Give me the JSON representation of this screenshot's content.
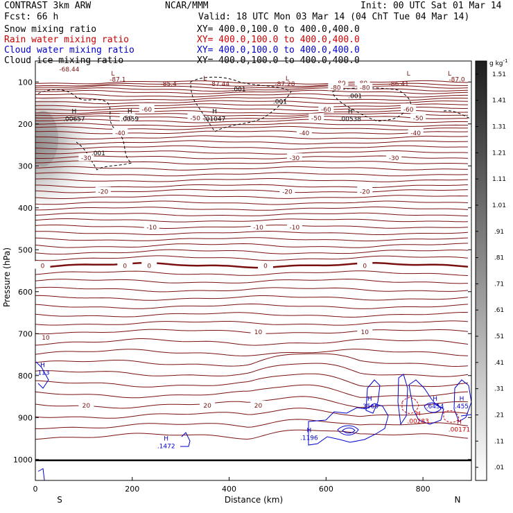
{
  "header": {
    "title_left": "CONTRAST  3km ARW",
    "title_center": "NCAR/MMM",
    "init": "Init: 00 UTC Sat 01 Mar 14",
    "fcst": "Fcst:   66 h",
    "valid": "Valid: 18 UTC Mon 03 Mar 14 (04 ChT Tue 04 Mar 14)",
    "fields": [
      {
        "name": "Snow mixing ratio",
        "xy": "XY= 400.0,100.0 to 400.0,400.0",
        "color": "#000000"
      },
      {
        "name": "Rain water mixing ratio",
        "xy": "XY= 400.0,100.0 to 400.0,400.0",
        "color": "#cc0000"
      },
      {
        "name": "Cloud water mixing ratio",
        "xy": "XY= 400.0,100.0 to 400.0,400.0",
        "color": "#0000cc"
      },
      {
        "name": "Cloud ice mixing ratio",
        "xy": "XY= 400.0,100.0 to 400.0,400.0",
        "color": "#000000"
      }
    ]
  },
  "chart_data": {
    "type": "contour-cross-section",
    "xlabel": "Distance (km)",
    "ylabel": "Pressure (hPa)",
    "xlim": [
      0,
      900
    ],
    "ylim": [
      1050,
      50
    ],
    "x_ticks": [
      0,
      200,
      400,
      600,
      800
    ],
    "y_ticks": [
      100,
      200,
      300,
      400,
      500,
      600,
      700,
      800,
      900,
      1000
    ],
    "end_labels": {
      "left": "S",
      "right": "N"
    },
    "colorbar": {
      "units": "g kg",
      "units_exp": "-1",
      "levels": [
        ".01",
        ".11",
        ".21",
        ".31",
        ".41",
        ".51",
        ".61",
        ".71",
        ".81",
        ".91",
        "1.01",
        "1.11",
        "1.21",
        "1.31",
        "1.41",
        "1.51"
      ]
    },
    "temperature_contours": [
      {
        "label": "-80",
        "p": 101,
        "labels": [
          {
            "x": 630,
            "text": "-80"
          },
          {
            "x": 675,
            "text": "-80"
          },
          {
            "x": 630,
            "text": "-80"
          }
        ]
      },
      {
        "label": "-80",
        "p": 112,
        "labels": [
          {
            "x": 620,
            "text": "-80"
          },
          {
            "x": 680,
            "text": "-80"
          }
        ]
      },
      {
        "label": "-60",
        "p": 164,
        "labels": [
          {
            "x": 230,
            "text": "-60"
          },
          {
            "x": 600,
            "text": "-60"
          },
          {
            "x": 770,
            "text": "-60"
          }
        ]
      },
      {
        "label": "-50",
        "p": 185,
        "labels": [
          {
            "x": 190,
            "text": "-50"
          },
          {
            "x": 330,
            "text": "-50"
          },
          {
            "x": 580,
            "text": "-50"
          },
          {
            "x": 790,
            "text": "-50"
          }
        ]
      },
      {
        "label": "-40",
        "p": 220,
        "labels": [
          {
            "x": 175,
            "text": "-40"
          },
          {
            "x": 555,
            "text": "-40"
          },
          {
            "x": 785,
            "text": "-40"
          }
        ]
      },
      {
        "label": "-30",
        "p": 280,
        "labels": [
          {
            "x": 105,
            "text": "-30"
          },
          {
            "x": 535,
            "text": "-30"
          },
          {
            "x": 740,
            "text": "-30"
          }
        ]
      },
      {
        "label": "-20",
        "p": 360,
        "labels": [
          {
            "x": 140,
            "text": "-20"
          },
          {
            "x": 520,
            "text": "-20"
          },
          {
            "x": 680,
            "text": "-20"
          }
        ]
      },
      {
        "label": "-10",
        "p": 445,
        "labels": [
          {
            "x": 240,
            "text": "-10"
          },
          {
            "x": 460,
            "text": "-10"
          },
          {
            "x": 535,
            "text": "-10"
          }
        ]
      },
      {
        "label": "0",
        "p": 537,
        "bold": true,
        "labels": [
          {
            "x": 15,
            "text": "0"
          },
          {
            "x": 185,
            "text": "0"
          },
          {
            "x": 235,
            "text": "0"
          },
          {
            "x": 475,
            "text": "0"
          },
          {
            "x": 680,
            "text": "0"
          }
        ]
      },
      {
        "label": "10",
        "p": 695,
        "labels": [
          {
            "x": 460,
            "text": "10"
          },
          {
            "x": 680,
            "text": "10"
          }
        ]
      },
      {
        "label": "20",
        "p": 870,
        "labels": [
          {
            "x": 105,
            "text": "20"
          },
          {
            "x": 355,
            "text": "20"
          },
          {
            "x": 460,
            "text": "20"
          }
        ]
      }
    ],
    "top_labels": [
      {
        "x": 70,
        "p": 68,
        "text": "-68.44"
      },
      {
        "x": 170,
        "p": 92,
        "text": "-87.1"
      },
      {
        "x": 275,
        "p": 103,
        "text": "-85.4"
      },
      {
        "x": 380,
        "p": 103,
        "text": "-87.44"
      },
      {
        "x": 515,
        "p": 103,
        "text": "-87.28"
      },
      {
        "x": 750,
        "p": 103,
        "text": "-86.41"
      },
      {
        "x": 870,
        "p": 92,
        "text": "-87.0"
      }
    ],
    "extrema": [
      {
        "kind": "H",
        "x": 80,
        "p": 185,
        "value": ".00657",
        "color": "#000000"
      },
      {
        "kind": "H",
        "x": 195,
        "p": 185,
        "value": ".0059",
        "color": "#000000"
      },
      {
        "kind": "H",
        "x": 370,
        "p": 185,
        "value": ".01047",
        "color": "#000000"
      },
      {
        "kind": "H",
        "x": 650,
        "p": 185,
        "value": ".00538",
        "color": "#000000"
      },
      {
        "kind": "H",
        "x": 270,
        "p": 965,
        "value": ".1472",
        "color": "#0000cc"
      },
      {
        "kind": "H",
        "x": 565,
        "p": 945,
        "value": ".1196",
        "color": "#0000cc"
      },
      {
        "kind": "H",
        "x": 690,
        "p": 870,
        "value": ".3569",
        "color": "#0000cc"
      },
      {
        "kind": "H",
        "x": 825,
        "p": 870,
        "value": ".6454",
        "color": "#0000cc"
      },
      {
        "kind": "H",
        "x": 880,
        "p": 870,
        "value": ".455",
        "color": "#0000cc"
      },
      {
        "kind": "H",
        "x": 15,
        "p": 790,
        "value": ".113",
        "color": "#0000cc"
      },
      {
        "kind": "H",
        "x": 790,
        "p": 905,
        "value": ".00283",
        "color": "#cc0000"
      },
      {
        "kind": "H",
        "x": 875,
        "p": 925,
        "value": ".00171",
        "color": "#cc0000"
      }
    ],
    "ice_labels": [
      {
        "x": 420,
        "p": 115,
        "text": ".001"
      },
      {
        "x": 505,
        "p": 145,
        "text": ".001"
      },
      {
        "x": 660,
        "p": 132,
        "text": ".001"
      },
      {
        "x": 130,
        "p": 268,
        "text": ".001"
      }
    ],
    "low_marks": [
      {
        "x": 160,
        "p": 78,
        "text": "L"
      },
      {
        "x": 350,
        "p": 90,
        "text": "L"
      },
      {
        "x": 520,
        "p": 90,
        "text": "L"
      },
      {
        "x": 770,
        "p": 78,
        "text": "L"
      },
      {
        "x": 855,
        "p": 78,
        "text": "L"
      }
    ],
    "cloud_water_label": {
      "x": 10,
      "p": 708,
      "text": "10"
    }
  }
}
